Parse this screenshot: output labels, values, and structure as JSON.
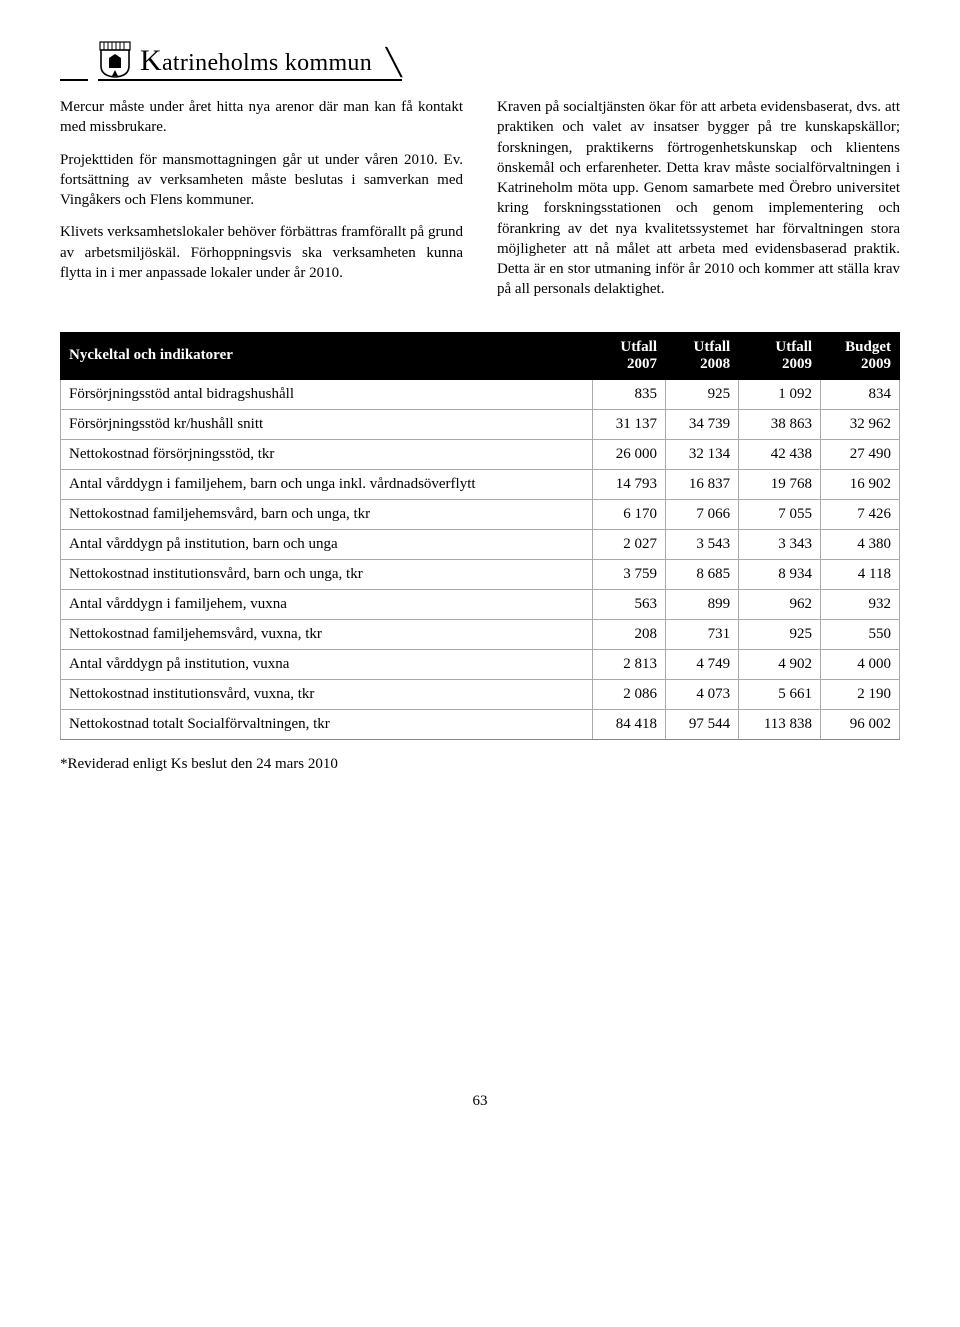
{
  "header": {
    "org": "Katrineholms kommun"
  },
  "leftcol": {
    "p1": "Mercur måste under året hitta nya arenor där man kan få kontakt med missbrukare.",
    "p2": "Projekttiden för mansmottagningen går ut under våren 2010. Ev. fortsättning av verksamheten måste beslutas i samverkan med Vingåkers och Flens kommuner.",
    "p3": "Klivets verksamhetslokaler behöver förbättras framförallt på grund av arbetsmiljöskäl. Förhoppningsvis ska verksamheten kunna flytta in i mer anpassade lokaler under år 2010."
  },
  "rightcol": {
    "p1": "Kraven på socialtjänsten ökar för att arbeta evidensbaserat, dvs. att praktiken och valet av insatser bygger på tre kunskapskällor; forskningen, praktikerns förtrogenhetskunskap och klientens önskemål och erfarenheter. Detta krav måste socialförvaltningen i Katrineholm möta upp. Genom samarbete med Örebro universitet kring forskningsstationen och genom implementering och förankring av det nya kvalitetssystemet har förvaltningen stora möjligheter att nå målet att arbeta med evidensbaserad praktik. Detta är en stor utmaning inför år 2010 och kommer att ställa krav på all personals delaktighet."
  },
  "table": {
    "title": "Nyckeltal och indikatorer",
    "headers": [
      {
        "top": "Utfall",
        "sub": "2007"
      },
      {
        "top": "Utfall",
        "sub": "2008"
      },
      {
        "top": "Utfall",
        "sub": "2009"
      },
      {
        "top": "Budget",
        "sub": "2009"
      }
    ],
    "rows": [
      {
        "label": "Försörjningsstöd antal bidragshushåll",
        "c": [
          "835",
          "925",
          "1 092",
          "834"
        ]
      },
      {
        "label": "Försörjningsstöd kr/hushåll snitt",
        "c": [
          "31 137",
          "34 739",
          "38 863",
          "32 962"
        ]
      },
      {
        "label": "Nettokostnad försörjningsstöd, tkr",
        "c": [
          "26 000",
          "32 134",
          "42 438",
          "27 490"
        ]
      },
      {
        "label": "Antal vårddygn i familjehem, barn och unga inkl. vårdnadsöverflytt",
        "c": [
          "14 793",
          "16 837",
          "19 768",
          "16 902"
        ]
      },
      {
        "label": "Nettokostnad familjehemsvård, barn och unga, tkr",
        "c": [
          "6 170",
          "7 066",
          "7 055",
          "7 426"
        ]
      },
      {
        "label": "Antal vårddygn på institution, barn och unga",
        "c": [
          "2 027",
          "3 543",
          "3 343",
          "4 380"
        ]
      },
      {
        "label": "Nettokostnad institutionsvård, barn och unga, tkr",
        "c": [
          "3 759",
          "8 685",
          "8 934",
          "4 118"
        ]
      },
      {
        "label": "Antal vårddygn i familjehem, vuxna",
        "c": [
          "563",
          "899",
          "962",
          "932"
        ]
      },
      {
        "label": "Nettokostnad familjehemsvård, vuxna, tkr",
        "c": [
          "208",
          "731",
          "925",
          "550"
        ]
      },
      {
        "label": "Antal vårddygn på institution, vuxna",
        "c": [
          "2 813",
          "4 749",
          "4 902",
          "4 000"
        ]
      },
      {
        "label": "Nettokostnad institutionsvård, vuxna, tkr",
        "c": [
          "2 086",
          "4 073",
          "5 661",
          "2 190"
        ]
      },
      {
        "label": "Nettokostnad totalt Socialförvaltningen, tkr",
        "c": [
          "84 418",
          "97 544",
          "113 838",
          "96 002"
        ]
      }
    ]
  },
  "note": "*Reviderad enligt Ks beslut den 24 mars 2010",
  "pagenum": "63",
  "colors": {
    "header_bg": "#000000",
    "header_fg": "#ffffff",
    "border": "#aaaaaa"
  }
}
